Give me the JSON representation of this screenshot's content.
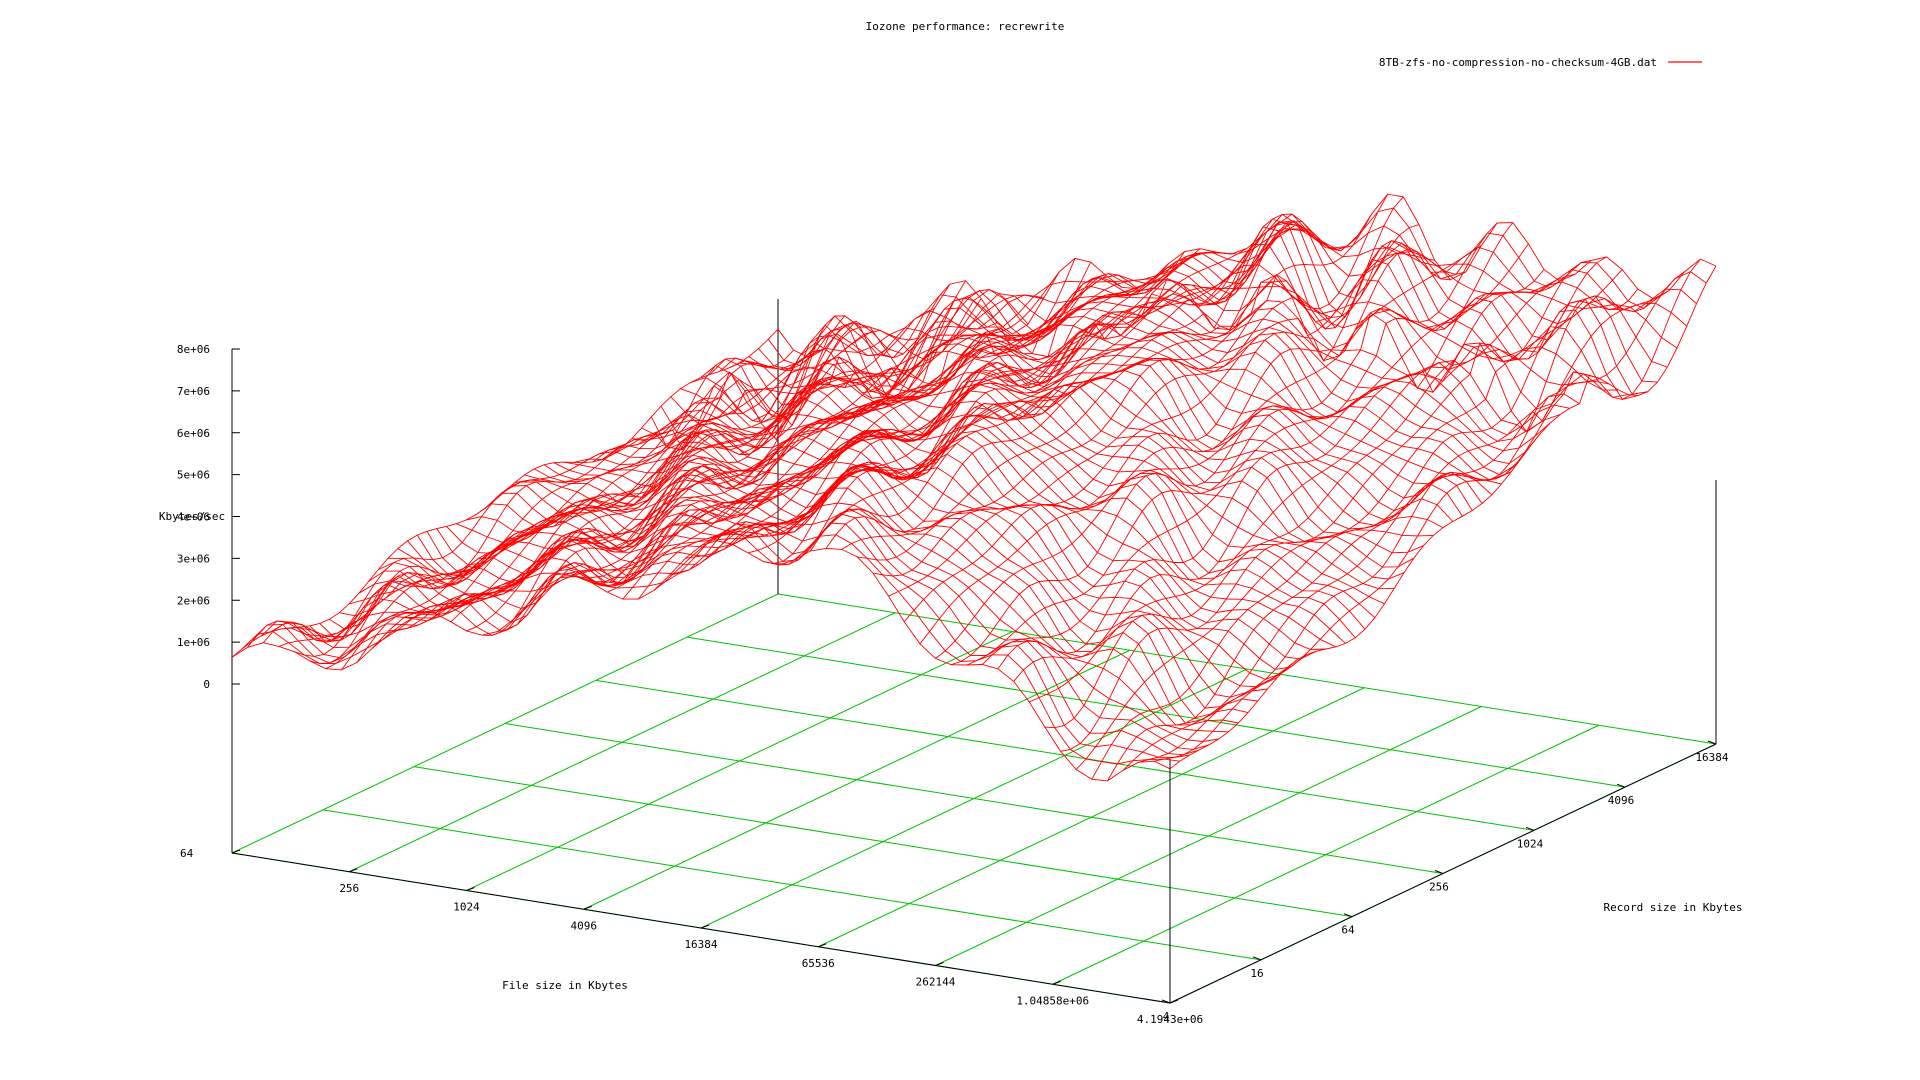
{
  "chart_data": {
    "type": "surface-3d",
    "title": "Iozone performance: recrewrite",
    "xlabel": "File size in Kbytes",
    "ylabel": "Record size in Kbytes",
    "zlabel": "Kbytes/sec",
    "legend": {
      "position": "top-right",
      "entries": [
        {
          "name": "8TB-zfs-no-compression-no-checksum-4GB.dat",
          "color": "#ff0000"
        }
      ]
    },
    "x_ticks": [
      "64",
      "256",
      "1024",
      "4096",
      "16384",
      "65536",
      "262144",
      "1.04858e+06",
      "4.1943e+06"
    ],
    "y_ticks": [
      "4",
      "16",
      "64",
      "256",
      "1024",
      "4096",
      "16384"
    ],
    "z_ticks": [
      "0",
      "1e+06",
      "2e+06",
      "3e+06",
      "4e+06",
      "5e+06",
      "6e+06",
      "7e+06",
      "8e+06"
    ],
    "zlim": [
      0,
      8000000
    ],
    "grid": "base-plane",
    "colors": {
      "surface": "#ff0000",
      "grid": "#00c000",
      "axes": "#000000"
    }
  }
}
